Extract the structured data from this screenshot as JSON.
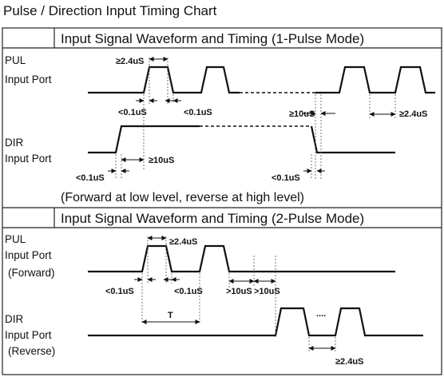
{
  "title": "Pulse / Direction Input Timing Chart",
  "section1": {
    "heading": "Input Signal Waveform and Timing (1-Pulse Mode)",
    "pul_label": [
      "PUL",
      "Input Port"
    ],
    "dir_label": [
      "DIR",
      "Input Port"
    ],
    "timings": {
      "pulse_width": "≥2.4uS",
      "rise": "<0.1uS",
      "fall": "<0.1uS",
      "gap": "≥10uS",
      "pulse_width_2": "≥2.4uS",
      "dir_rise": "<0.1uS",
      "dir_setup": "≥10uS",
      "dir_fall": "<0.1uS"
    },
    "note": "(Forward at low level, reverse at high level)"
  },
  "section2": {
    "heading": "Input Signal Waveform and Timing (2-Pulse Mode)",
    "pul_label": [
      "PUL",
      "Input Port",
      "(Forward)"
    ],
    "dir_label": [
      "DIR",
      "Input Port",
      "(Reverse)"
    ],
    "timings": {
      "pulse_width": "≥2.4uS",
      "rise": "<0.1uS",
      "fall": "<0.1uS",
      "gap1": ">10uS",
      "gap2": ">10uS",
      "period": "T",
      "ellipsis": "....",
      "pulse_width_2": "≥2.4uS"
    }
  }
}
